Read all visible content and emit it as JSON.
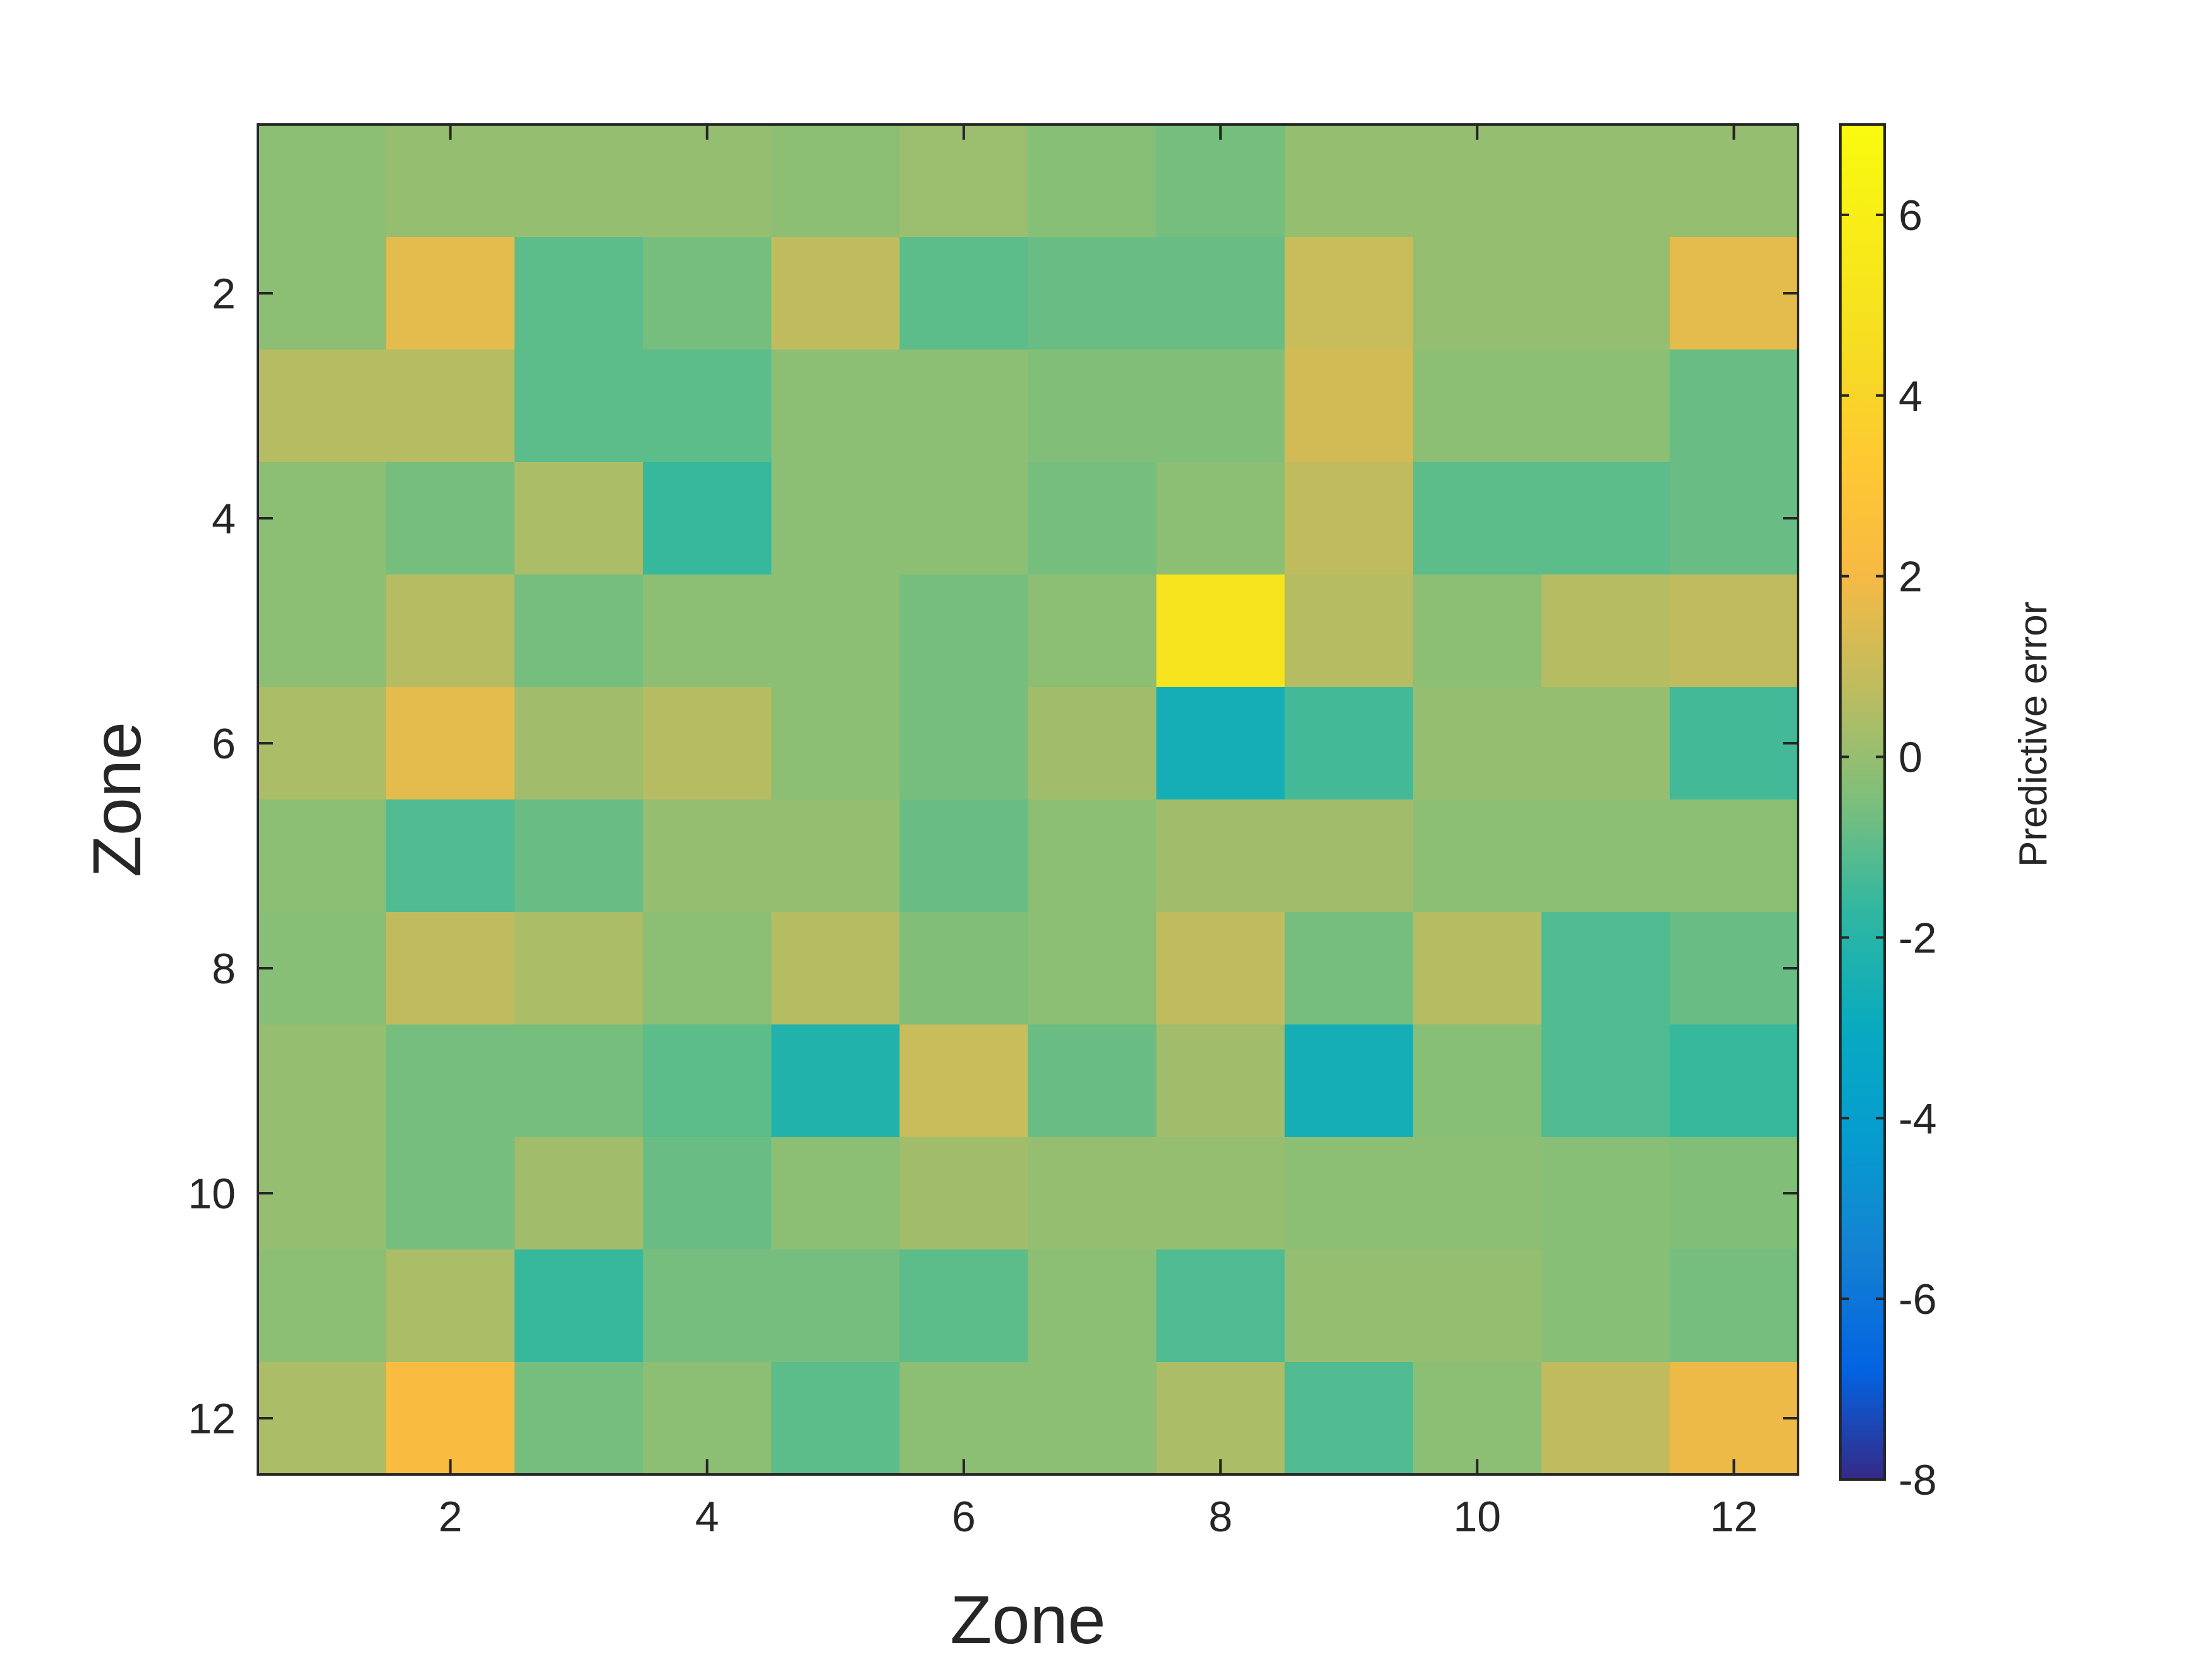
{
  "chart_data": {
    "type": "heatmap",
    "title": "",
    "xlabel": "Zone",
    "ylabel": "Zone",
    "x": [
      1,
      2,
      3,
      4,
      5,
      6,
      7,
      8,
      9,
      10,
      11,
      12
    ],
    "y": [
      1,
      2,
      3,
      4,
      5,
      6,
      7,
      8,
      9,
      10,
      11,
      12
    ],
    "xticks": [
      2,
      4,
      6,
      8,
      10,
      12
    ],
    "yticks": [
      2,
      4,
      6,
      8,
      10,
      12
    ],
    "xlim": [
      0.5,
      12.5
    ],
    "ylim": [
      0.5,
      12.5
    ],
    "y_direction": "reverse",
    "colorbar": {
      "label": "Predictive error",
      "lim": [
        -8,
        7
      ],
      "ticks": [
        -8,
        -6,
        -4,
        -2,
        0,
        2,
        4,
        6
      ],
      "colormap": "parula",
      "placement": "right"
    },
    "values": [
      [
        -0.2,
        0.0,
        0.0,
        0.0,
        -0.2,
        0.1,
        -0.3,
        -0.6,
        0.0,
        0.0,
        0.0,
        0.0
      ],
      [
        -0.2,
        1.6,
        -1.0,
        -0.6,
        0.8,
        -1.0,
        -0.8,
        -0.8,
        1.0,
        0.0,
        0.0,
        1.6
      ],
      [
        0.6,
        0.6,
        -1.0,
        -1.0,
        -0.2,
        -0.2,
        -0.4,
        -0.4,
        1.2,
        -0.2,
        -0.2,
        -0.8
      ],
      [
        -0.2,
        -0.6,
        0.4,
        -1.6,
        -0.2,
        -0.2,
        -0.6,
        -0.2,
        0.8,
        -1.0,
        -1.0,
        -0.8
      ],
      [
        -0.2,
        0.6,
        -0.6,
        -0.2,
        -0.2,
        -0.6,
        -0.2,
        5.0,
        0.6,
        -0.2,
        0.6,
        0.8
      ],
      [
        0.4,
        1.6,
        0.2,
        0.6,
        -0.2,
        -0.6,
        0.2,
        -2.6,
        -1.4,
        0.0,
        0.0,
        -1.4
      ],
      [
        -0.2,
        -1.2,
        -0.8,
        0.0,
        0.0,
        -0.8,
        -0.2,
        0.2,
        0.2,
        -0.2,
        -0.2,
        -0.2
      ],
      [
        -0.3,
        0.8,
        0.4,
        -0.2,
        0.6,
        -0.4,
        -0.2,
        0.8,
        -0.6,
        0.6,
        -1.2,
        -0.8
      ],
      [
        0.0,
        -0.6,
        -0.6,
        -1.0,
        -2.2,
        1.0,
        -0.8,
        0.2,
        -2.6,
        -0.3,
        -1.2,
        -1.6
      ],
      [
        0.0,
        -0.6,
        0.2,
        -0.8,
        -0.2,
        0.2,
        0.0,
        0.0,
        -0.2,
        -0.2,
        -0.3,
        -0.4
      ],
      [
        -0.2,
        0.4,
        -1.6,
        -0.6,
        -0.6,
        -1.0,
        -0.2,
        -1.2,
        0.0,
        0.0,
        -0.3,
        -0.6
      ],
      [
        0.4,
        2.2,
        -0.6,
        -0.2,
        -1.0,
        -0.2,
        -0.2,
        0.4,
        -1.2,
        -0.2,
        0.8,
        1.8
      ]
    ]
  }
}
